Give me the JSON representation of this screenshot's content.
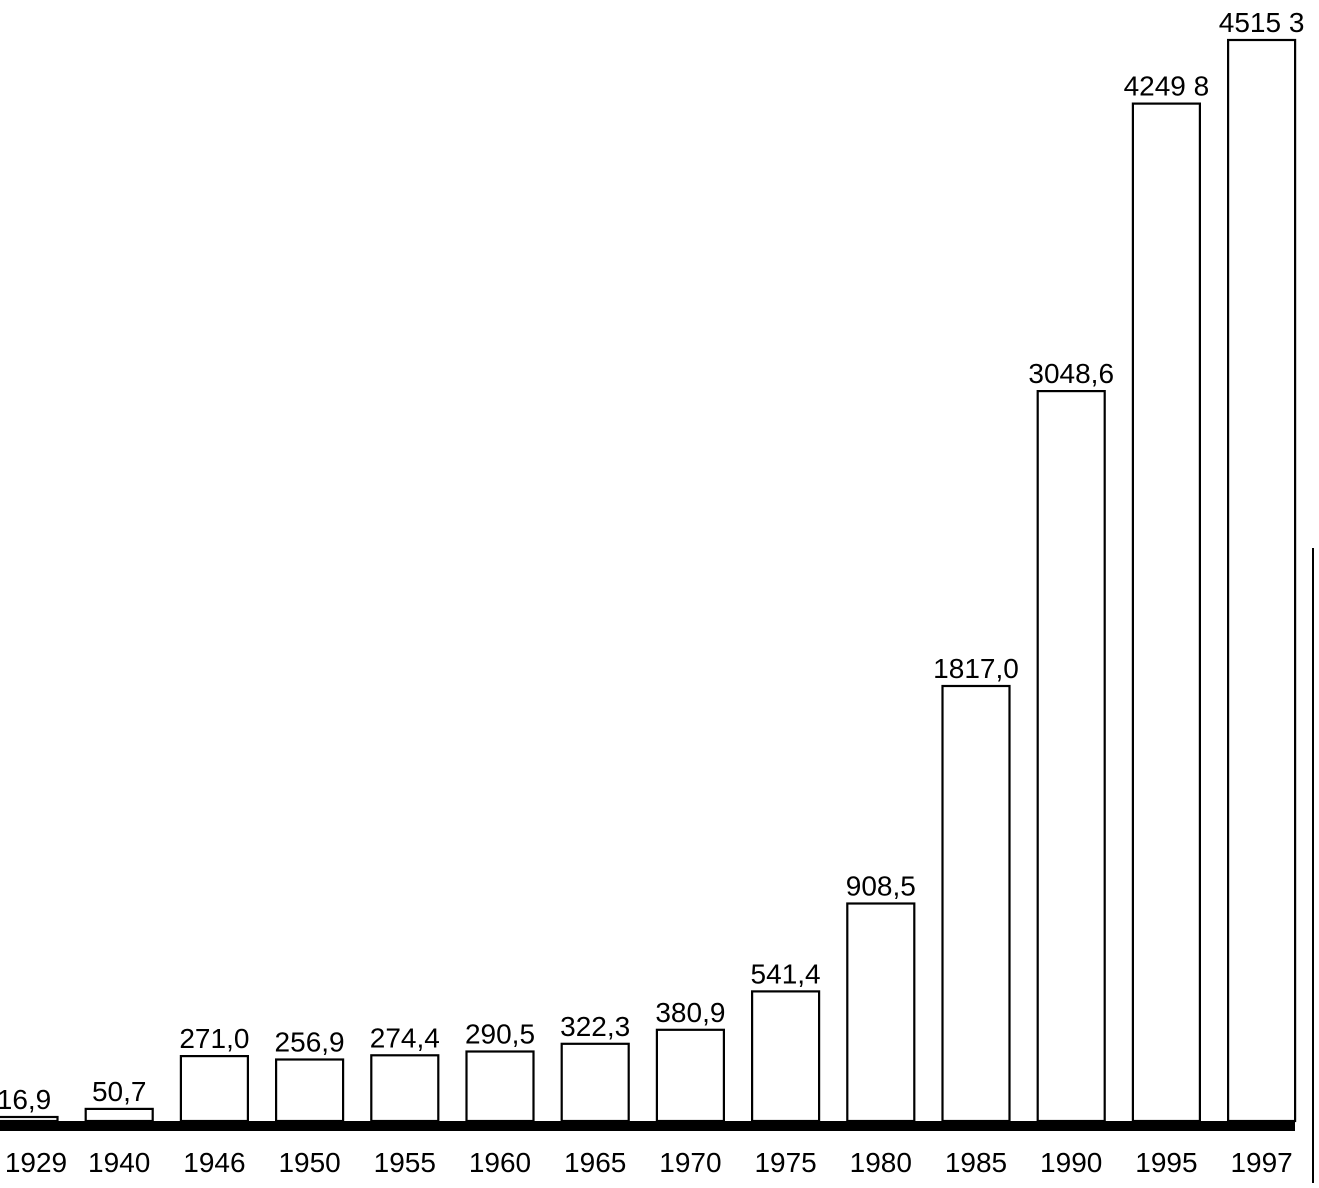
{
  "chart_data": {
    "type": "bar",
    "categories": [
      "1929",
      "1940",
      "1946",
      "1950",
      "1955",
      "1960",
      "1965",
      "1970",
      "1975",
      "1980",
      "1985",
      "1990",
      "1995",
      "1997"
    ],
    "values": [
      16.9,
      50.7,
      271.0,
      256.9,
      274.4,
      290.5,
      322.3,
      380.9,
      541.4,
      908.5,
      1817.0,
      3048.6,
      4249.8,
      4515.3
    ],
    "value_labels": [
      "16,9",
      "50,7",
      "271,0",
      "256,9",
      "274,4",
      "290,5",
      "322,3",
      "380,9",
      "541,4",
      "908,5",
      "1817,0",
      "3048,6",
      "4249 8",
      "4515 3"
    ],
    "title": "",
    "xlabel": "",
    "ylabel": "",
    "ylim": [
      0,
      4515.3
    ],
    "grid": false,
    "legend": "none",
    "colors": {
      "bar_fill": "#ffffff",
      "bar_stroke": "#000000",
      "baseline": "#000000",
      "text": "#000000"
    }
  }
}
